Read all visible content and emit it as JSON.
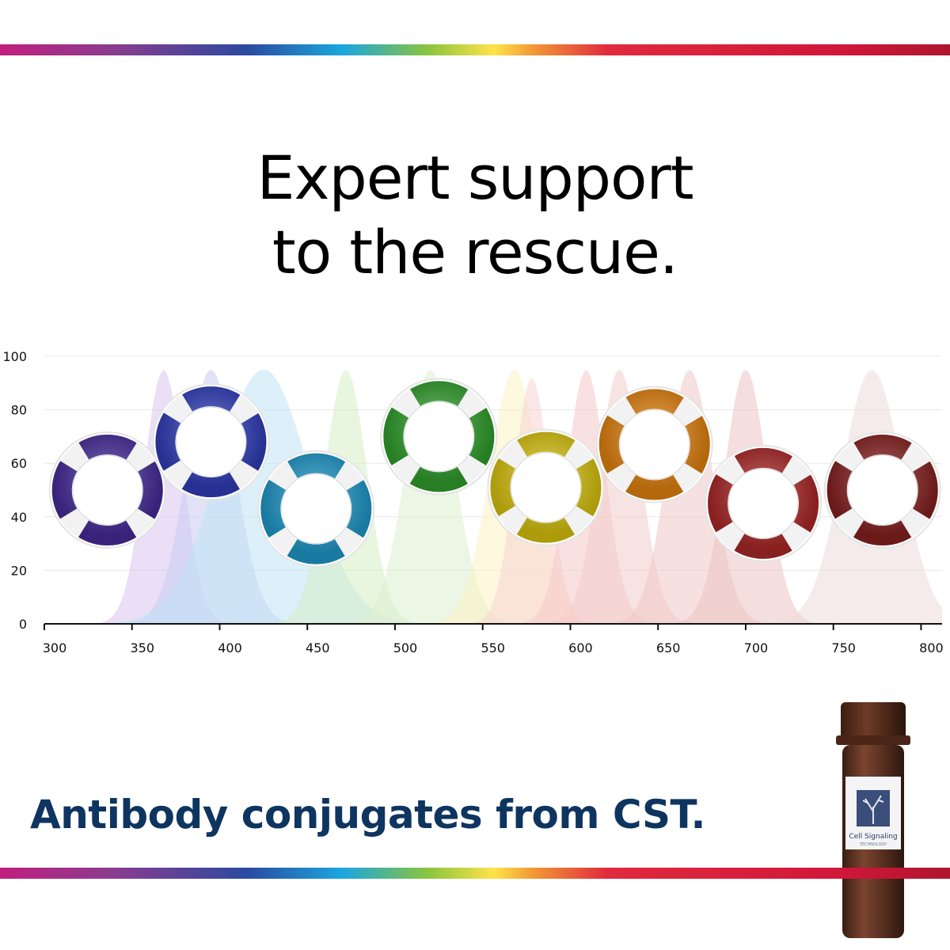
{
  "headline": {
    "line1": "Expert support",
    "line2": "to the rescue."
  },
  "tagline": "Antibody conjugates from CST.",
  "product": {
    "label_line1": "Cell Signaling",
    "label_line2": "TECHNOLOGY",
    "label_icon": "tree-icon"
  },
  "colors": {
    "tagline": "#0e3560",
    "headline": "#000000"
  },
  "chart_data": {
    "type": "area",
    "title": "",
    "xlabel": "",
    "ylabel": "",
    "xlim": [
      300,
      812
    ],
    "ylim": [
      0,
      100
    ],
    "xticks": [
      300,
      350,
      400,
      450,
      500,
      550,
      600,
      650,
      700,
      750,
      800
    ],
    "yticks": [
      0,
      20,
      40,
      60,
      80,
      100
    ],
    "grid": true,
    "legend": "none",
    "series": [
      {
        "peak": 368,
        "width": 11,
        "height": 95,
        "color": "#d8c4ee"
      },
      {
        "peak": 395,
        "width": 14,
        "height": 95,
        "color": "#c8cbf0"
      },
      {
        "peak": 425,
        "width": 26,
        "height": 95,
        "color": "#bfe3f6"
      },
      {
        "peak": 472,
        "width": 12,
        "height": 95,
        "color": "#d6efc7"
      },
      {
        "peak": 520,
        "width": 14,
        "height": 95,
        "color": "#dcefcf"
      },
      {
        "peak": 568,
        "width": 14,
        "height": 95,
        "color": "#fbf2c3"
      },
      {
        "peak": 578,
        "width": 10,
        "height": 92,
        "color": "#f7d3d3"
      },
      {
        "peak": 609,
        "width": 11,
        "height": 95,
        "color": "#f5c9c9"
      },
      {
        "peak": 628,
        "width": 12,
        "height": 95,
        "color": "#f3cccc"
      },
      {
        "peak": 668,
        "width": 13,
        "height": 95,
        "color": "#f1c7c7"
      },
      {
        "peak": 700,
        "width": 12,
        "height": 95,
        "color": "#ecc2c2"
      },
      {
        "peak": 772,
        "width": 17,
        "height": 95,
        "color": "#eddada"
      }
    ],
    "annotations": [
      {
        "x": 336,
        "y": 50,
        "color": "#4a2ea3"
      },
      {
        "x": 395,
        "y": 68,
        "color": "#3341c4"
      },
      {
        "x": 455,
        "y": 43,
        "color": "#21a2d6"
      },
      {
        "x": 525,
        "y": 70,
        "color": "#34a82f"
      },
      {
        "x": 586,
        "y": 51,
        "color": "#e6cf10"
      },
      {
        "x": 648,
        "y": 67,
        "color": "#f08a10"
      },
      {
        "x": 710,
        "y": 45,
        "color": "#b62a2a"
      },
      {
        "x": 778,
        "y": 50,
        "color": "#8f2323"
      }
    ]
  }
}
